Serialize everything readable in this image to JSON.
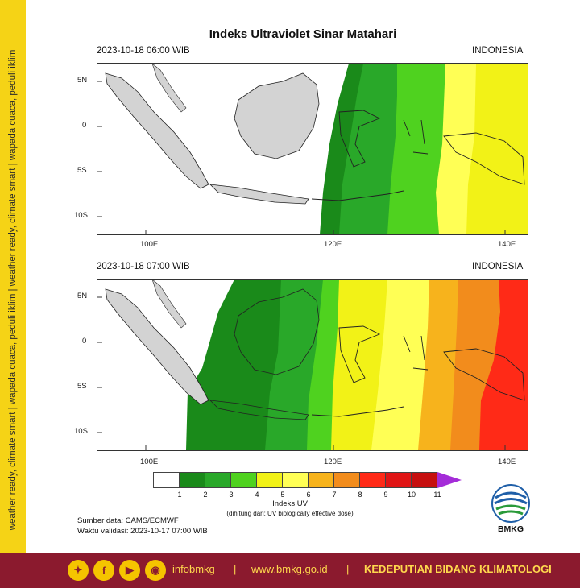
{
  "side_tagline": "weather ready, climate smart  |  wapada cuaca, peduli iklim  |  weather ready, climate smart  |  wapada cuaca, peduli iklim",
  "title": "Indeks Ultraviolet Sinar Matahari",
  "panels": [
    {
      "datetime": "2023-10-18  06:00 WIB",
      "region": "INDONESIA"
    },
    {
      "datetime": "2023-10-18  07:00 WIB",
      "region": "INDONESIA"
    }
  ],
  "axes": {
    "lat_labels": [
      "5N",
      "0",
      "5S",
      "10S"
    ],
    "lon_labels": [
      "100E",
      "120E",
      "140E"
    ]
  },
  "colorbar": {
    "title": "Indeks UV",
    "subtitle": "(dihitung dari: UV biologically effective dose)",
    "ticks": [
      "1",
      "2",
      "3",
      "4",
      "5",
      "6",
      "7",
      "8",
      "9",
      "10",
      "11"
    ],
    "colors": [
      "#ffffff",
      "#1a8a1a",
      "#29a829",
      "#4fd21f",
      "#f2f217",
      "#ffff55",
      "#f7b31c",
      "#f28c1c",
      "#ff2a17",
      "#e01515",
      "#c60f0f"
    ],
    "extend_color": "#a42cd8"
  },
  "source_line": "Sumber data: CAMS/ECMWF",
  "validity_line": "Waktu validasi: 2023-10-17 07:00 WIB",
  "logo_text": "BMKG",
  "footer": {
    "social_icons": [
      "twitter-icon",
      "facebook-icon",
      "youtube-icon",
      "instagram-icon"
    ],
    "handle": "infobmkg",
    "separator": "|",
    "website": "www.bmkg.go.id",
    "department": "KEDEPUTIAN BIDANG KLIMATOLOGI"
  }
}
